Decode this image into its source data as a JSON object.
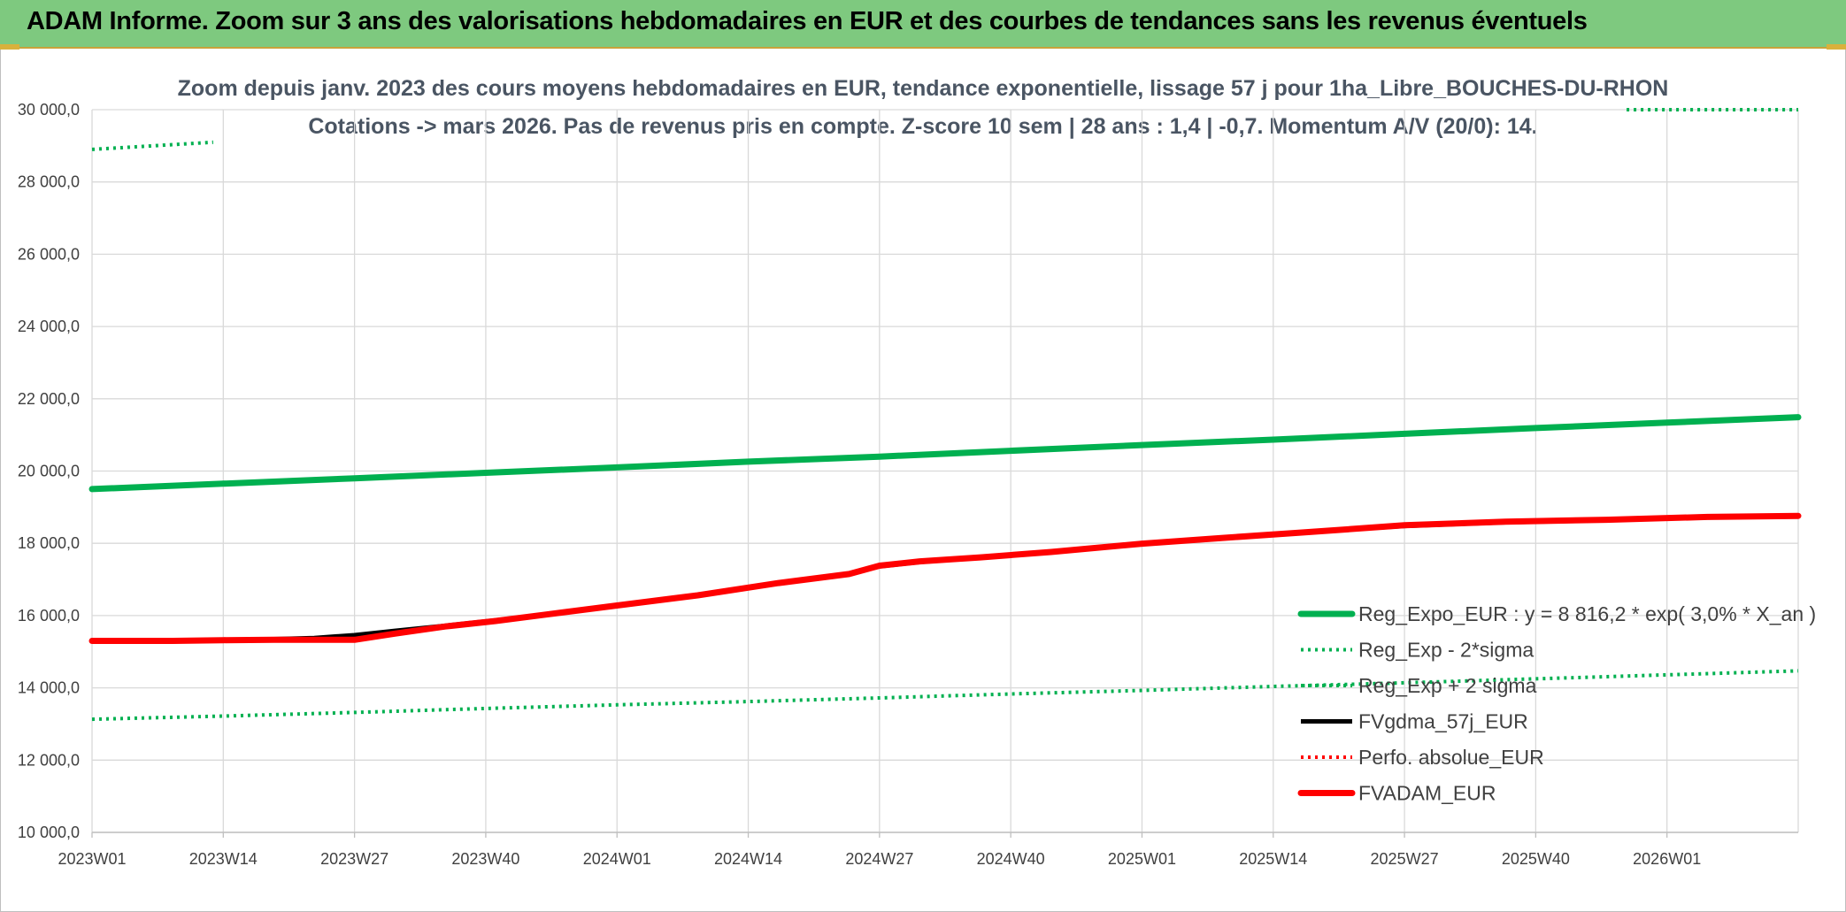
{
  "banner": {
    "title": "ADAM Informe. Zoom sur 3 ans des valorisations hebdomadaires en EUR et des courbes de tendances sans les revenus éventuels"
  },
  "colors": {
    "banner_bg": "#7ec97f",
    "green": "#00b050",
    "black": "#000000",
    "red": "#ff0000",
    "grid": "#d9d9d9"
  },
  "chart_data": {
    "type": "line",
    "title_line1": "Zoom depuis janv. 2023 des cours moyens hebdomadaires en EUR, tendance exponentielle, lissage 57 j pour 1ha_Libre_BOUCHES-DU-RHON",
    "title_line2": "Cotations -> mars 2026. Pas de revenus pris en compte. Z-score 10 sem | 28 ans : 1,4 | -0,7. Momentum A/V (20/0): 14.",
    "x_tick_labels": [
      "2023W01",
      "2023W14",
      "2023W27",
      "2023W40",
      "2024W01",
      "2024W14",
      "2024W27",
      "2024W40",
      "2025W01",
      "2025W14",
      "2025W27",
      "2025W40",
      "2026W01"
    ],
    "x_range_weeks": [
      0,
      169
    ],
    "ylim": [
      10000,
      30000
    ],
    "y_tick_values": [
      10000,
      12000,
      14000,
      16000,
      18000,
      20000,
      22000,
      24000,
      26000,
      28000,
      30000
    ],
    "y_tick_labels": [
      "10 000,0",
      "12 000,0",
      "14 000,0",
      "16 000,0",
      "18 000,0",
      "20 000,0",
      "22 000,0",
      "24 000,0",
      "26 000,0",
      "28 000,0",
      "30 000,0"
    ],
    "grid": true,
    "legend_position": "bottom-right",
    "series": [
      {
        "name": "Reg_Expo_EUR : y = 8 816,2 * exp( 3,0% *  X_an )",
        "color": "#00b050",
        "style": "solid-thick",
        "points": [
          [
            0,
            19500
          ],
          [
            13,
            19650
          ],
          [
            26,
            19800
          ],
          [
            39,
            19950
          ],
          [
            52,
            20100
          ],
          [
            65,
            20260
          ],
          [
            78,
            20400
          ],
          [
            91,
            20560
          ],
          [
            104,
            20720
          ],
          [
            117,
            20870
          ],
          [
            130,
            21030
          ],
          [
            143,
            21190
          ],
          [
            156,
            21340
          ],
          [
            169,
            21490
          ]
        ]
      },
      {
        "name": "Reg_Exp - 2*sigma",
        "color": "#00b050",
        "style": "dotted",
        "points": [
          [
            0,
            13130
          ],
          [
            13,
            13220
          ],
          [
            26,
            13320
          ],
          [
            39,
            13430
          ],
          [
            52,
            13530
          ],
          [
            65,
            13620
          ],
          [
            78,
            13720
          ],
          [
            91,
            13830
          ],
          [
            104,
            13930
          ],
          [
            117,
            14040
          ],
          [
            130,
            14140
          ],
          [
            143,
            14250
          ],
          [
            156,
            14360
          ],
          [
            169,
            14470
          ]
        ]
      },
      {
        "name": "Reg_Exp + 2 sigma",
        "color": "#00b050",
        "style": "dotted",
        "segments": [
          [
            [
              0,
              28900
            ],
            [
              12,
              29100
            ]
          ],
          [
            [
              152,
              30000
            ],
            [
              169,
              30000
            ]
          ]
        ]
      },
      {
        "name": "FVgdma_57j_EUR",
        "color": "#000000",
        "style": "solid",
        "points": [
          [
            0,
            15300
          ],
          [
            8,
            15300
          ],
          [
            13,
            15320
          ],
          [
            18,
            15350
          ],
          [
            22,
            15380
          ],
          [
            26,
            15460
          ],
          [
            30,
            15580
          ],
          [
            35,
            15720
          ],
          [
            40,
            15870
          ],
          [
            45,
            16040
          ],
          [
            52,
            16280
          ],
          [
            60,
            16560
          ],
          [
            68,
            16900
          ],
          [
            75,
            17150
          ],
          [
            78,
            17360
          ],
          [
            82,
            17480
          ],
          [
            88,
            17600
          ],
          [
            95,
            17760
          ],
          [
            104,
            17990
          ],
          [
            112,
            18150
          ],
          [
            120,
            18300
          ],
          [
            130,
            18480
          ],
          [
            140,
            18580
          ],
          [
            150,
            18640
          ],
          [
            160,
            18720
          ],
          [
            169,
            18760
          ]
        ]
      },
      {
        "name": "Perfo. absolue_EUR",
        "color": "#ff0000",
        "style": "dotted",
        "points": []
      },
      {
        "name": "FVADAM_EUR",
        "color": "#ff0000",
        "style": "solid-thick",
        "points": [
          [
            0,
            15300
          ],
          [
            8,
            15300
          ],
          [
            13,
            15320
          ],
          [
            18,
            15330
          ],
          [
            22,
            15330
          ],
          [
            26,
            15330
          ],
          [
            30,
            15500
          ],
          [
            35,
            15700
          ],
          [
            40,
            15850
          ],
          [
            45,
            16030
          ],
          [
            52,
            16280
          ],
          [
            60,
            16560
          ],
          [
            68,
            16900
          ],
          [
            75,
            17150
          ],
          [
            78,
            17380
          ],
          [
            82,
            17500
          ],
          [
            88,
            17610
          ],
          [
            95,
            17760
          ],
          [
            104,
            17990
          ],
          [
            112,
            18150
          ],
          [
            120,
            18300
          ],
          [
            130,
            18500
          ],
          [
            140,
            18600
          ],
          [
            150,
            18650
          ],
          [
            160,
            18730
          ],
          [
            169,
            18760
          ]
        ]
      }
    ]
  }
}
